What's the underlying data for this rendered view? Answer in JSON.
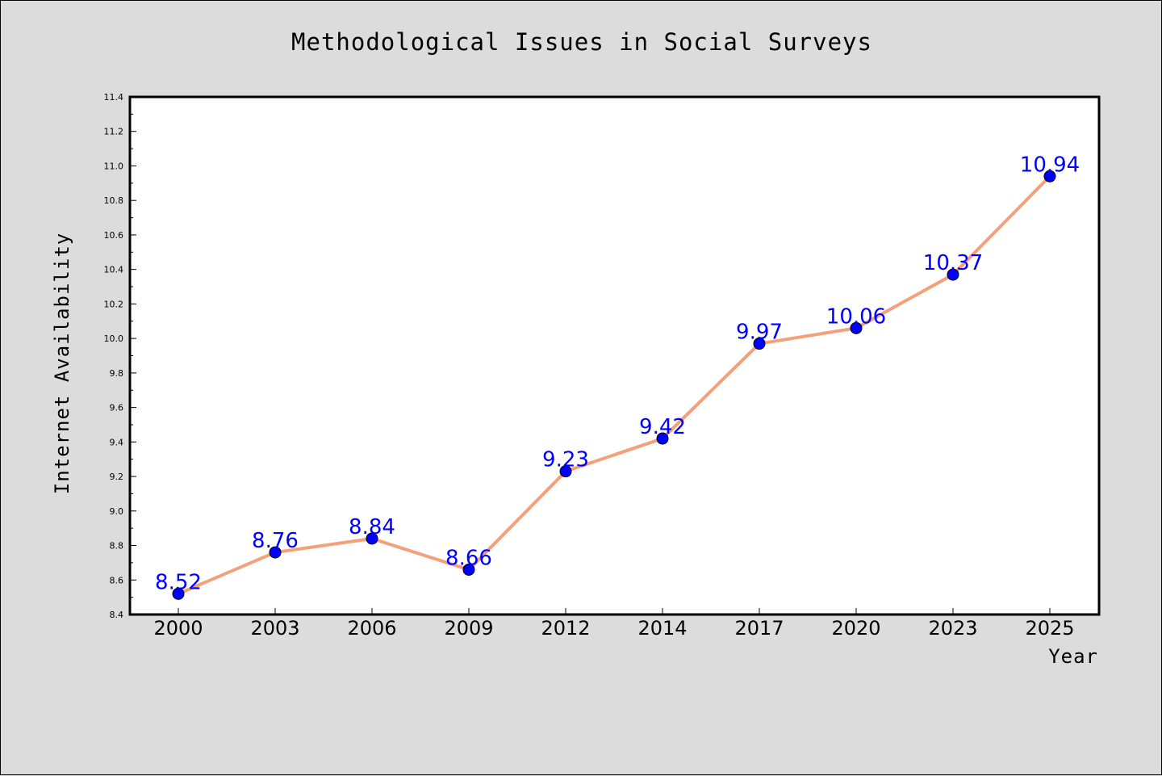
{
  "chart_data": {
    "type": "line",
    "title": "Methodological Issues in Social Surveys",
    "xlabel": "Year",
    "ylabel": "Internet Availability",
    "categories": [
      "2000",
      "2003",
      "2006",
      "2009",
      "2012",
      "2014",
      "2017",
      "2020",
      "2023",
      "2025"
    ],
    "series": [
      {
        "values": [
          8.52,
          8.76,
          8.84,
          8.66,
          9.23,
          9.42,
          9.97,
          10.06,
          10.37,
          10.94
        ],
        "labels": [
          "8.52",
          "8.76",
          "8.84",
          "8.66",
          "9.23",
          "9.42",
          "9.97",
          "10.06",
          "10.37",
          "10.94"
        ],
        "line_color": "#f4a07a",
        "marker_color": "#0000ff"
      }
    ],
    "ylim": [
      8.4,
      11.4
    ],
    "yticks": [
      "8.4",
      "8.6",
      "8.8",
      "9.0",
      "9.2",
      "9.4",
      "9.6",
      "9.8",
      "10.0",
      "10.2",
      "10.4",
      "10.6",
      "10.8",
      "11.0",
      "11.2",
      "11.4"
    ],
    "grid": false,
    "legend": "none"
  }
}
